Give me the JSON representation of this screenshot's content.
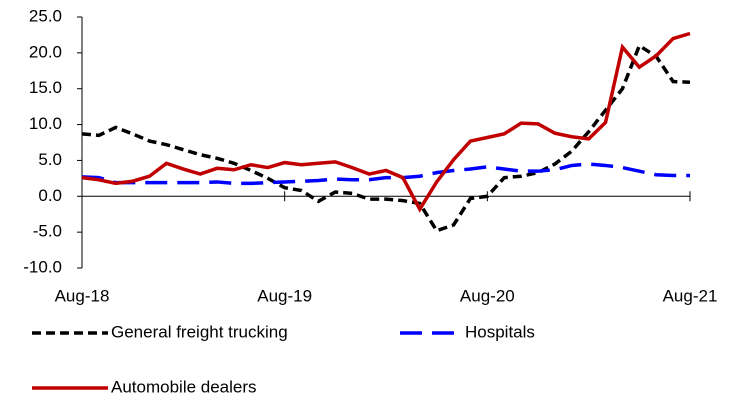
{
  "chart_data": {
    "type": "line",
    "categories": [
      "Aug-18",
      null,
      null,
      null,
      null,
      null,
      null,
      null,
      null,
      null,
      null,
      null,
      "Aug-19",
      null,
      null,
      null,
      null,
      null,
      null,
      null,
      null,
      null,
      null,
      null,
      "Aug-20",
      null,
      null,
      null,
      null,
      null,
      null,
      null,
      null,
      null,
      null,
      null,
      "Aug-21"
    ],
    "series": [
      {
        "name": "General freight trucking",
        "color": "#000000",
        "line_style": "dashed",
        "values": [
          8.7,
          8.5,
          9.6,
          8.7,
          7.7,
          7.2,
          6.5,
          5.8,
          5.3,
          4.6,
          3.6,
          2.5,
          1.2,
          0.8,
          -0.7,
          0.6,
          0.4,
          -0.4,
          -0.4,
          -0.6,
          -1.0,
          -4.8,
          -4.0,
          -0.3,
          0.0,
          2.6,
          2.8,
          3.3,
          4.5,
          6.3,
          9.0,
          12.0,
          15.0,
          21.0,
          19.5,
          16.0,
          15.9
        ]
      },
      {
        "name": "Hospitals",
        "color": "#0000ff",
        "line_style": "long-dashed",
        "values": [
          2.7,
          2.6,
          1.9,
          1.9,
          1.9,
          1.9,
          1.9,
          1.9,
          2.0,
          1.8,
          1.8,
          1.9,
          2.0,
          2.1,
          2.2,
          2.4,
          2.3,
          2.3,
          2.6,
          2.6,
          2.8,
          3.3,
          3.6,
          3.8,
          4.1,
          3.8,
          3.5,
          3.5,
          3.7,
          4.3,
          4.5,
          4.3,
          4.0,
          3.5,
          3.0,
          2.9,
          2.9
        ]
      },
      {
        "name": "Automobile dealers",
        "color": "#c00000",
        "line_style": "solid",
        "values": [
          2.6,
          2.3,
          1.8,
          2.1,
          2.8,
          4.6,
          3.8,
          3.1,
          3.9,
          3.7,
          4.4,
          4.0,
          4.7,
          4.4,
          4.6,
          4.8,
          4.0,
          3.1,
          3.6,
          2.6,
          -1.8,
          2.0,
          5.1,
          7.7,
          8.2,
          8.7,
          10.2,
          10.1,
          8.8,
          8.3,
          8.0,
          10.3,
          20.8,
          18.0,
          19.6,
          22.0,
          22.7
        ]
      }
    ],
    "ylim": [
      -10,
      25
    ],
    "yticks": [
      {
        "value": -10,
        "label": "-10.0"
      },
      {
        "value": -5,
        "label": "-5.0"
      },
      {
        "value": 0,
        "label": "0.0"
      },
      {
        "value": 5,
        "label": "5.0"
      },
      {
        "value": 10,
        "label": "10.0"
      },
      {
        "value": 15,
        "label": "15.0"
      },
      {
        "value": 20,
        "label": "20.0"
      },
      {
        "value": 25,
        "label": "25.0"
      }
    ],
    "grid": false
  }
}
